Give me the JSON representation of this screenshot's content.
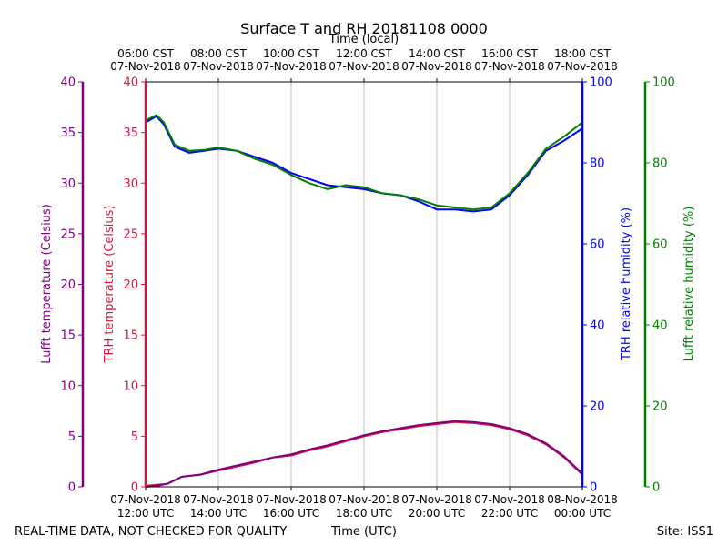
{
  "chart_data": {
    "type": "line",
    "title": "Surface T and RH 20181108 0000",
    "top_axis_label": "Time (local)",
    "top_ticks": [
      {
        "t": 0,
        "line1": "06:00 CST",
        "line2": "07-Nov-2018"
      },
      {
        "t": 2,
        "line1": "08:00 CST",
        "line2": "07-Nov-2018"
      },
      {
        "t": 4,
        "line1": "10:00 CST",
        "line2": "07-Nov-2018"
      },
      {
        "t": 6,
        "line1": "12:00 CST",
        "line2": "07-Nov-2018"
      },
      {
        "t": 8,
        "line1": "14:00 CST",
        "line2": "07-Nov-2018"
      },
      {
        "t": 10,
        "line1": "16:00 CST",
        "line2": "07-Nov-2018"
      },
      {
        "t": 12,
        "line1": "18:00 CST",
        "line2": "07-Nov-2018"
      }
    ],
    "bottom_ticks": [
      {
        "t": 0,
        "line1": "07-Nov-2018",
        "line2": "12:00 UTC"
      },
      {
        "t": 2,
        "line1": "07-Nov-2018",
        "line2": "14:00 UTC"
      },
      {
        "t": 4,
        "line1": "07-Nov-2018",
        "line2": "16:00 UTC"
      },
      {
        "t": 6,
        "line1": "07-Nov-2018",
        "line2": "18:00 UTC"
      },
      {
        "t": 8,
        "line1": "07-Nov-2018",
        "line2": "20:00 UTC"
      },
      {
        "t": 10,
        "line1": "07-Nov-2018",
        "line2": "22:00 UTC"
      },
      {
        "t": 12,
        "line1": "08-Nov-2018",
        "line2": "00:00 UTC"
      }
    ],
    "xlabel": "Time (UTC)",
    "xlim_hours_since_1200utc": [
      0,
      12
    ],
    "left_outer_axis": {
      "label": "Lufft temperature (Celsius)",
      "ylim": [
        0,
        40
      ],
      "ticks": [
        0,
        5,
        10,
        15,
        20,
        25,
        30,
        35,
        40
      ],
      "color": "#800080"
    },
    "left_inner_axis": {
      "label": "TRH temperature (Celsius)",
      "ylim": [
        0,
        40
      ],
      "ticks": [
        0,
        5,
        10,
        15,
        20,
        25,
        30,
        35,
        40
      ],
      "color": "#dc143c"
    },
    "right_inner_axis": {
      "label": "TRH relative humidity (%)",
      "ylim": [
        0,
        100
      ],
      "ticks": [
        0,
        20,
        40,
        60,
        80,
        100
      ],
      "color": "#0000ff"
    },
    "right_outer_axis": {
      "label": "Lufft relative humidity (%)",
      "ylim": [
        0,
        100
      ],
      "ticks": [
        0,
        20,
        40,
        60,
        80,
        100
      ],
      "color": "#008000"
    },
    "grid": "vertical",
    "series": [
      {
        "name": "TRH temperature",
        "axis": "left_inner_axis",
        "color": "#dc143c",
        "x": [
          0,
          0.3,
          0.6,
          1.0,
          1.5,
          2.0,
          2.5,
          3.0,
          3.5,
          4.0,
          4.5,
          5.0,
          5.5,
          6.0,
          6.5,
          7.0,
          7.5,
          8.0,
          8.5,
          9.0,
          9.5,
          10.0,
          10.5,
          11.0,
          11.5,
          12.0
        ],
        "values": [
          0.1,
          0.2,
          0.3,
          1.0,
          1.2,
          1.6,
          2.0,
          2.4,
          2.9,
          3.1,
          3.6,
          4.0,
          4.5,
          5.0,
          5.4,
          5.7,
          6.0,
          6.2,
          6.4,
          6.3,
          6.1,
          5.7,
          5.1,
          4.2,
          2.9,
          1.2
        ]
      },
      {
        "name": "Lufft temperature",
        "axis": "left_outer_axis",
        "color": "#800080",
        "x": [
          0,
          0.3,
          0.6,
          1.0,
          1.5,
          2.0,
          2.5,
          3.0,
          3.5,
          4.0,
          4.5,
          5.0,
          5.5,
          6.0,
          6.5,
          7.0,
          7.5,
          8.0,
          8.5,
          9.0,
          9.5,
          10.0,
          10.5,
          11.0,
          11.5,
          12.0
        ],
        "values": [
          0.0,
          0.1,
          0.3,
          1.0,
          1.2,
          1.7,
          2.1,
          2.5,
          2.9,
          3.2,
          3.7,
          4.1,
          4.6,
          5.1,
          5.5,
          5.8,
          6.1,
          6.3,
          6.5,
          6.4,
          6.2,
          5.8,
          5.2,
          4.3,
          3.0,
          1.3
        ]
      },
      {
        "name": "TRH relative humidity",
        "axis": "right_inner_axis",
        "color": "#0000ff",
        "x": [
          0,
          0.3,
          0.5,
          0.8,
          1.2,
          1.6,
          2.0,
          2.5,
          3.0,
          3.5,
          4.0,
          4.5,
          5.0,
          5.5,
          6.0,
          6.5,
          7.0,
          7.5,
          8.0,
          8.5,
          9.0,
          9.5,
          10.0,
          10.5,
          11.0,
          11.5,
          12.0
        ],
        "values": [
          90.0,
          91.5,
          89.5,
          84.0,
          82.5,
          83.0,
          83.5,
          83.0,
          81.5,
          80.0,
          77.5,
          76.0,
          74.5,
          74.0,
          73.5,
          72.5,
          72.0,
          70.5,
          68.5,
          68.5,
          68.0,
          68.5,
          72.0,
          77.0,
          83.0,
          85.5,
          88.5
        ]
      },
      {
        "name": "Lufft relative humidity",
        "axis": "right_outer_axis",
        "color": "#008000",
        "x": [
          0,
          0.3,
          0.5,
          0.8,
          1.2,
          1.6,
          2.0,
          2.5,
          3.0,
          3.5,
          4.0,
          4.5,
          5.0,
          5.5,
          6.0,
          6.5,
          7.0,
          7.5,
          8.0,
          8.5,
          9.0,
          9.5,
          10.0,
          10.5,
          11.0,
          11.5,
          12.0
        ],
        "values": [
          90.5,
          91.8,
          90.0,
          84.5,
          83.0,
          83.2,
          83.8,
          83.0,
          81.0,
          79.5,
          77.0,
          75.0,
          73.5,
          74.5,
          74.0,
          72.5,
          72.0,
          71.0,
          69.5,
          69.0,
          68.5,
          69.0,
          72.5,
          77.5,
          83.5,
          86.5,
          90.0
        ]
      }
    ]
  },
  "footer": {
    "left_text": "REAL-TIME DATA, NOT CHECKED FOR QUALITY",
    "site_text": "Site: ISS1"
  }
}
